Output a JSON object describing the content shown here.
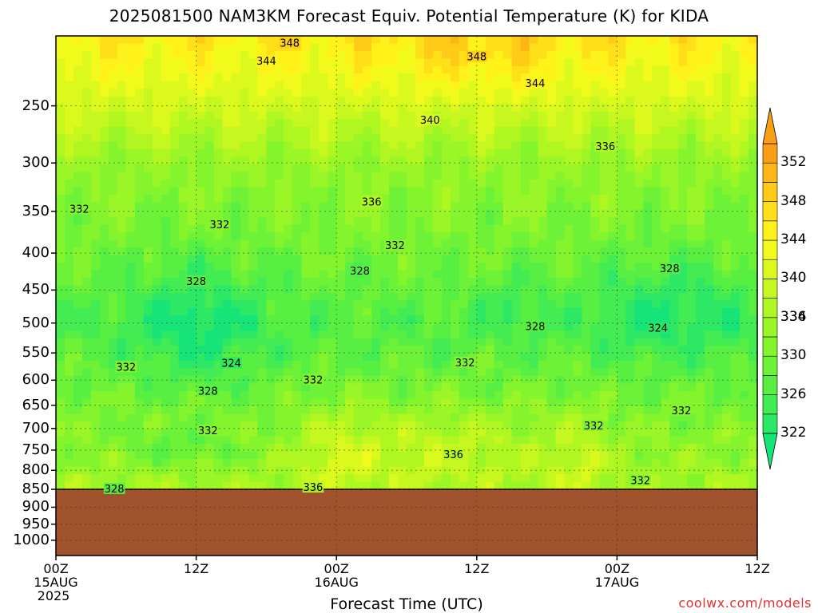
{
  "chart_data": {
    "type": "heatmap",
    "title": "2025081500 NAM3KM Forecast Equiv. Potential Temperature (K) for KIDA",
    "xlabel": "Forecast Time (UTC)",
    "y_axis": {
      "scale": "log",
      "inverted": true,
      "range": [
        200,
        1050
      ],
      "ticks": [
        250,
        300,
        350,
        400,
        450,
        500,
        550,
        600,
        650,
        700,
        750,
        800,
        850,
        900,
        950,
        1000
      ]
    },
    "x_axis": {
      "range_hours": [
        0,
        60
      ],
      "ticks": [
        {
          "hour": 0,
          "lines": [
            "00Z",
            "15AUG",
            "2025"
          ]
        },
        {
          "hour": 12,
          "lines": [
            "12Z"
          ]
        },
        {
          "hour": 24,
          "lines": [
            "00Z",
            "16AUG"
          ]
        },
        {
          "hour": 36,
          "lines": [
            "12Z"
          ]
        },
        {
          "hour": 48,
          "lines": [
            "00Z",
            "17AUG"
          ]
        },
        {
          "hour": 60,
          "lines": [
            "12Z"
          ]
        }
      ]
    },
    "grid": "dotted",
    "colorbar": {
      "levels": [
        322,
        324,
        326,
        328,
        330,
        332,
        334,
        336,
        338,
        340,
        342,
        344,
        346,
        348,
        350,
        352
      ],
      "labels": [
        322,
        326,
        330,
        334,
        336,
        340,
        344,
        348,
        352
      ],
      "colors": [
        "#16e478",
        "#2ce865",
        "#42ec52",
        "#58ef43",
        "#6ef237",
        "#84f42d",
        "#9af626",
        "#b0f722",
        "#c6f820",
        "#dcf91e",
        "#f2fa1c",
        "#fff21a",
        "#ffdf18",
        "#ffcb17",
        "#fdb616",
        "#fa9f15"
      ],
      "extend": "both"
    },
    "ground": {
      "below_hPa": 850,
      "color": "#a0522d"
    },
    "contour_interval_K": 2,
    "contour_labels": [
      {
        "value": "348",
        "hour": 20,
        "p": 205
      },
      {
        "value": "348",
        "hour": 36,
        "p": 214
      },
      {
        "value": "344",
        "hour": 18,
        "p": 217
      },
      {
        "value": "344",
        "hour": 41,
        "p": 233
      },
      {
        "value": "340",
        "hour": 32,
        "p": 262
      },
      {
        "value": "336",
        "hour": 47,
        "p": 285
      },
      {
        "value": "336",
        "hour": 27,
        "p": 340
      },
      {
        "value": "332",
        "hour": 2,
        "p": 348
      },
      {
        "value": "332",
        "hour": 14,
        "p": 366
      },
      {
        "value": "332",
        "hour": 29,
        "p": 391
      },
      {
        "value": "328",
        "hour": 26,
        "p": 424
      },
      {
        "value": "328",
        "hour": 12,
        "p": 438
      },
      {
        "value": "328",
        "hour": 52.5,
        "p": 421
      },
      {
        "value": "328",
        "hour": 41,
        "p": 506
      },
      {
        "value": "324",
        "hour": 51.5,
        "p": 509
      },
      {
        "value": "324",
        "hour": 15,
        "p": 569
      },
      {
        "value": "332",
        "hour": 6,
        "p": 576
      },
      {
        "value": "332",
        "hour": 35,
        "p": 568
      },
      {
        "value": "332",
        "hour": 22,
        "p": 600
      },
      {
        "value": "328",
        "hour": 13,
        "p": 622
      },
      {
        "value": "332",
        "hour": 53.5,
        "p": 662
      },
      {
        "value": "332",
        "hour": 46,
        "p": 695
      },
      {
        "value": "332",
        "hour": 13,
        "p": 706
      },
      {
        "value": "336",
        "hour": 34,
        "p": 762
      },
      {
        "value": "336",
        "hour": 22,
        "p": 846
      },
      {
        "value": "332",
        "hour": 50,
        "p": 828
      },
      {
        "value": "328",
        "hour": 5,
        "p": 850
      }
    ]
  },
  "credit": "coolwx.com/models"
}
